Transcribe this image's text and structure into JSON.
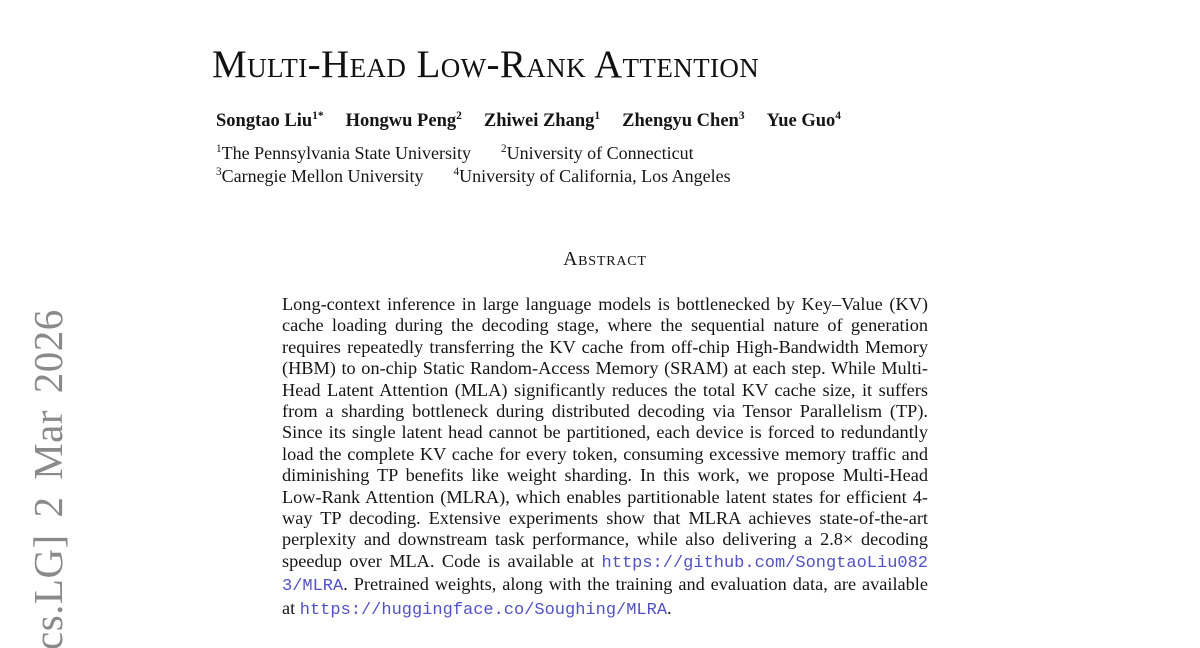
{
  "stamp": {
    "text": "cs.LG] 2 Mar 2026"
  },
  "title": "Multi-Head Low-Rank Attention",
  "authors": [
    {
      "name": "Songtao Liu",
      "sup": "1*"
    },
    {
      "name": "Hongwu Peng",
      "sup": "2"
    },
    {
      "name": "Zhiwei Zhang",
      "sup": "1"
    },
    {
      "name": "Zhengyu Chen",
      "sup": "3"
    },
    {
      "name": "Yue Guo",
      "sup": "4"
    }
  ],
  "affiliations": [
    {
      "sup": "1",
      "name": "The Pennsylvania State University"
    },
    {
      "sup": "2",
      "name": "University of Connecticut"
    },
    {
      "sup": "3",
      "name": "Carnegie Mellon University"
    },
    {
      "sup": "4",
      "name": "University of California, Los Angeles"
    }
  ],
  "abstract": {
    "heading": "Abstract",
    "part1": "Long-context inference in large language models is bottlenecked by Key–Value (KV) cache loading during the decoding stage, where the sequential nature of generation requires repeatedly transferring the KV cache from off-chip High-Bandwidth Memory (HBM) to on-chip Static Random-Access Memory (SRAM) at each step. While Multi-Head Latent Attention (MLA) significantly reduces the total KV cache size, it suffers from a sharding bottleneck during distributed decoding via Tensor Parallelism (TP). Since its single latent head cannot be partitioned, each device is forced to redundantly load the complete KV cache for every token, consuming excessive memory traffic and diminishing TP benefits like weight sharding. In this work, we propose Multi-Head Low-Rank Attention (MLRA), which enables partitionable latent states for efficient 4-way TP decoding. Extensive experiments show that MLRA achieves state-of-the-art perplexity and downstream task performance, while also delivering a 2.8× decoding speedup over MLA. Code is available at ",
    "link1": "https://github.com/SongtaoLiu0823/MLRA",
    "part2": ". Pretrained weights, along with the training and evaluation data, are available at ",
    "link2": "https://huggingface.co/Soughing/MLRA",
    "part3": "."
  },
  "colors": {
    "link": "#5151c5",
    "stamp_gray": "#8a8a8a",
    "text": "#151515"
  }
}
